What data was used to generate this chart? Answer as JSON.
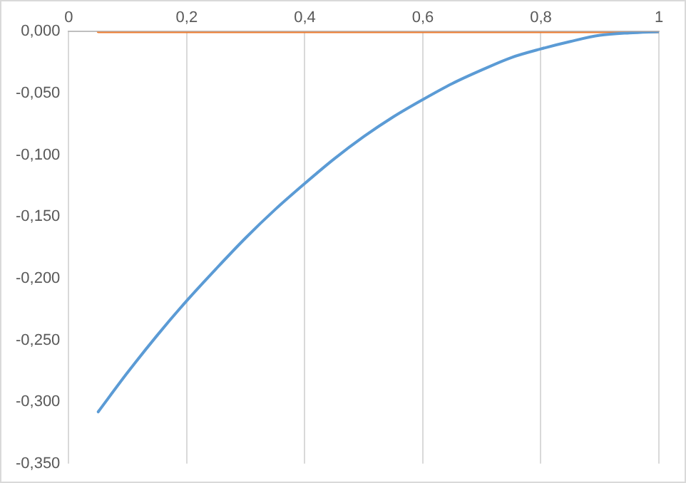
{
  "chart_data": {
    "type": "line",
    "xlim": [
      0,
      1
    ],
    "ylim": [
      -0.35,
      0
    ],
    "xticks": [
      0,
      {
        "value": 0.2,
        "label": "0,2"
      },
      {
        "value": 0.4,
        "label": "0,4"
      },
      {
        "value": 0.6,
        "label": "0,6"
      },
      {
        "value": 0.8,
        "label": "0,8"
      },
      1
    ],
    "yticks": [
      {
        "value": 0,
        "label": "0,000"
      },
      {
        "value": -0.05,
        "label": "-0,050"
      },
      {
        "value": -0.1,
        "label": "-0,100"
      },
      {
        "value": -0.15,
        "label": "-0,150"
      },
      {
        "value": -0.2,
        "label": "-0,200"
      },
      {
        "value": -0.25,
        "label": "-0,250"
      },
      {
        "value": -0.3,
        "label": "-0,300"
      },
      {
        "value": -0.35,
        "label": "-0,350"
      }
    ],
    "x": [
      0.05,
      0.1,
      0.15,
      0.2,
      0.25,
      0.3,
      0.35,
      0.4,
      0.45,
      0.5,
      0.55,
      0.6,
      0.65,
      0.7,
      0.75,
      0.8,
      0.85,
      0.9,
      0.95,
      1
    ],
    "series": [
      {
        "color": "#5b9bd5",
        "values": [
          -0.308,
          -0.276,
          -0.246,
          -0.218,
          -0.192,
          -0.167,
          -0.144,
          -0.123,
          -0.103,
          -0.085,
          -0.069,
          -0.055,
          -0.042,
          -0.031,
          -0.021,
          -0.014,
          -0.008,
          -0.003,
          -0.001,
          0
        ]
      },
      {
        "color": "#ed7d31",
        "values": [
          0,
          0,
          0,
          0,
          0,
          0,
          0,
          0,
          0,
          0,
          0,
          0,
          0,
          0,
          0,
          0,
          0,
          0,
          0,
          0
        ]
      }
    ],
    "grid": "x",
    "legend": false,
    "marker": "none",
    "line_style": "solid"
  }
}
